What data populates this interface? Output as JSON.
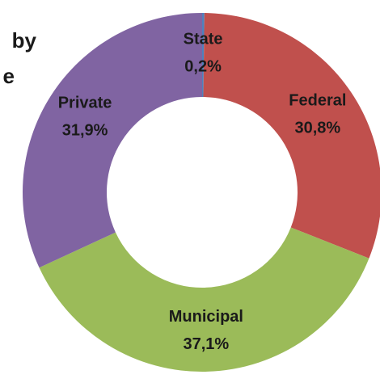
{
  "chart_data": {
    "type": "donut",
    "title_lines": [
      "by",
      "e"
    ],
    "categories": [
      "State",
      "Federal",
      "Municipal",
      "Private"
    ],
    "values": [
      0.2,
      30.8,
      37.1,
      31.9
    ],
    "value_labels": [
      "0,2%",
      "30,8%",
      "37,1%",
      "31,9%"
    ],
    "colors": [
      "#4f81bd",
      "#c0504d",
      "#9bbb59",
      "#8064a2"
    ]
  }
}
